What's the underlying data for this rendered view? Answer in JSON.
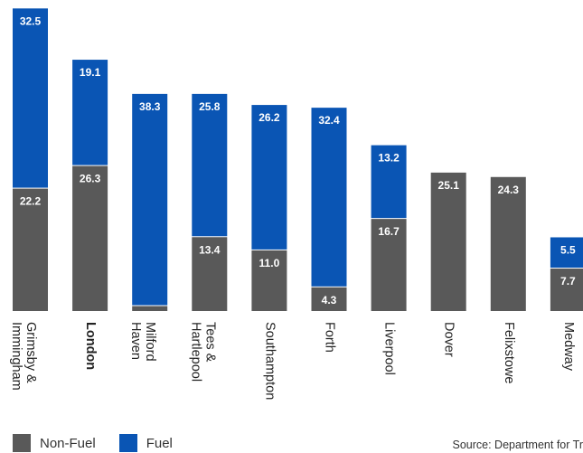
{
  "chart_data": {
    "type": "bar",
    "stacked": true,
    "title": "",
    "categories": [
      "Grimsby & Immingham",
      "London",
      "Milford Haven",
      "Tees & Hartlepool",
      "Southampton",
      "Forth",
      "Liverpool",
      "Dover",
      "Felixstowe",
      "Medway"
    ],
    "category_lines": [
      [
        "Grimsby &",
        "Immingham"
      ],
      [
        "London"
      ],
      [
        "Milford",
        "Haven"
      ],
      [
        "Tees &",
        "Hartlepool"
      ],
      [
        "Southampton"
      ],
      [
        "Forth"
      ],
      [
        "Liverpool"
      ],
      [
        "Dover"
      ],
      [
        "Felixstowe"
      ],
      [
        "Medway"
      ]
    ],
    "highlight_category": "London",
    "series": [
      {
        "name": "Non-Fuel",
        "color": "#595959",
        "values": [
          22.2,
          26.3,
          0.9,
          13.4,
          11.0,
          4.3,
          16.7,
          25.1,
          24.3,
          7.7
        ]
      },
      {
        "name": "Fuel",
        "color": "#0a55b4",
        "values": [
          32.5,
          19.1,
          38.3,
          25.8,
          26.2,
          32.4,
          13.2,
          null,
          null,
          5.5
        ]
      }
    ],
    "ylim": [
      0,
      55
    ],
    "grid": false,
    "legend": "bottom-left"
  },
  "source": "Source: Department for Tr"
}
